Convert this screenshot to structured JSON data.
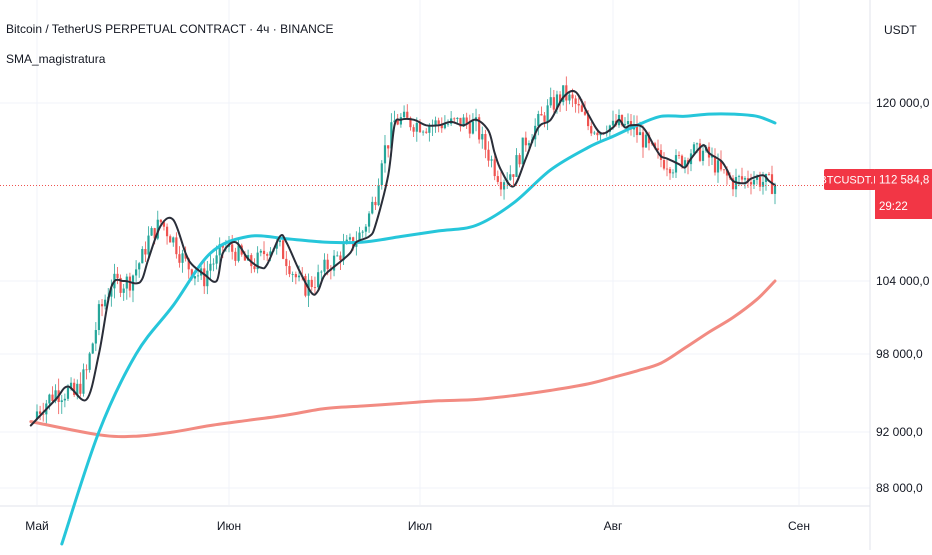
{
  "header": {
    "title": "Bitcoin / TetherUS PERPETUAL CONTRACT · 4ч · BINANCE",
    "indicator": "SMA_magistratura"
  },
  "colors": {
    "background": "#ffffff",
    "grid": "#f0f3fa",
    "candle_up": "#26a69a",
    "candle_down": "#ef5350",
    "sma_fast": "#2a2e39",
    "sma_mid": "#26c6da",
    "sma_slow": "#f28b82",
    "price_line": "#ef5350",
    "label_bg": "#f23645",
    "label_text": "#ffffff",
    "axis_text": "#131722"
  },
  "chart_data": {
    "type": "line",
    "symbol_label": "BTCUSDT.P",
    "currency": "USDT",
    "last_price": 112584.8,
    "last_price_label": "112 584,8",
    "countdown": "29:22",
    "y_ticks": [
      {
        "value": 120000,
        "label": "120 000,0"
      },
      {
        "value": 104000,
        "label": "104 000,0"
      },
      {
        "value": 98000,
        "label": "98 000,0"
      },
      {
        "value": 92000,
        "label": "92 000,0"
      },
      {
        "value": 88000,
        "label": "88 000,0"
      }
    ],
    "x_ticks": [
      "Май",
      "Июн",
      "Июл",
      "Авг",
      "Сен"
    ],
    "x_tick_positions": [
      0,
      31,
      61,
      92,
      123
    ],
    "x_range": [
      -1,
      131
    ],
    "series": [
      {
        "key": "fast",
        "x": [
          -1,
          3,
          5,
          8,
          10,
          12,
          14,
          16,
          17,
          18,
          20,
          22,
          24,
          25,
          27,
          29,
          30,
          32,
          34,
          36,
          37,
          39,
          40,
          42,
          44,
          45,
          46,
          48,
          50,
          51,
          53,
          54,
          56,
          57,
          58,
          60,
          62,
          64,
          66,
          68,
          70,
          72,
          73,
          74,
          76,
          78,
          80,
          82,
          84,
          86,
          88,
          90,
          92,
          93,
          94,
          95,
          97,
          99,
          100,
          101,
          103,
          104,
          105,
          107,
          108,
          110,
          111,
          112,
          114,
          115,
          117,
          118,
          119
        ],
        "y": [
          92500,
          94500,
          95500,
          94500,
          98000,
          103500,
          104000,
          103800,
          104200,
          106000,
          109000,
          109500,
          106500,
          105500,
          104600,
          104000,
          106500,
          107500,
          106000,
          105200,
          105500,
          108000,
          107500,
          105000,
          103000,
          103200,
          104500,
          105500,
          106500,
          107500,
          108000,
          109000,
          113500,
          118000,
          118500,
          118500,
          118000,
          118000,
          118300,
          118000,
          118500,
          117500,
          115500,
          114000,
          112500,
          115000,
          117800,
          118500,
          120500,
          121000,
          119000,
          117300,
          117800,
          118500,
          117800,
          118000,
          117800,
          116000,
          115200,
          115000,
          114500,
          114200,
          115000,
          116200,
          115500,
          114800,
          114000,
          113000,
          112800,
          113200,
          113500,
          113000,
          112600
        ]
      },
      {
        "key": "mid",
        "x": [
          4,
          10,
          16,
          22,
          28,
          34,
          40,
          46,
          52,
          58,
          64,
          70,
          76,
          82,
          88,
          92,
          96,
          100,
          104,
          108,
          112,
          116,
          119
        ],
        "y": [
          84000,
          92000,
          98000,
          102000,
          106500,
          108000,
          107800,
          107500,
          107500,
          108000,
          108500,
          109000,
          111000,
          114000,
          116000,
          117000,
          118000,
          118800,
          118800,
          119000,
          119000,
          118800,
          118200
        ]
      },
      {
        "key": "slow",
        "x": [
          -1,
          10,
          16,
          22,
          28,
          34,
          40,
          46,
          52,
          58,
          64,
          70,
          76,
          82,
          88,
          92,
          96,
          100,
          104,
          108,
          112,
          116,
          119
        ],
        "y": [
          92800,
          91800,
          91700,
          92000,
          92500,
          92900,
          93300,
          93800,
          94000,
          94200,
          94400,
          94500,
          94800,
          95200,
          95700,
          96200,
          96700,
          97300,
          98500,
          99800,
          101000,
          102500,
          104000
        ]
      }
    ],
    "candles": {
      "range_start": 0,
      "range_end": 119,
      "volatility": 800,
      "seed": 7
    }
  }
}
